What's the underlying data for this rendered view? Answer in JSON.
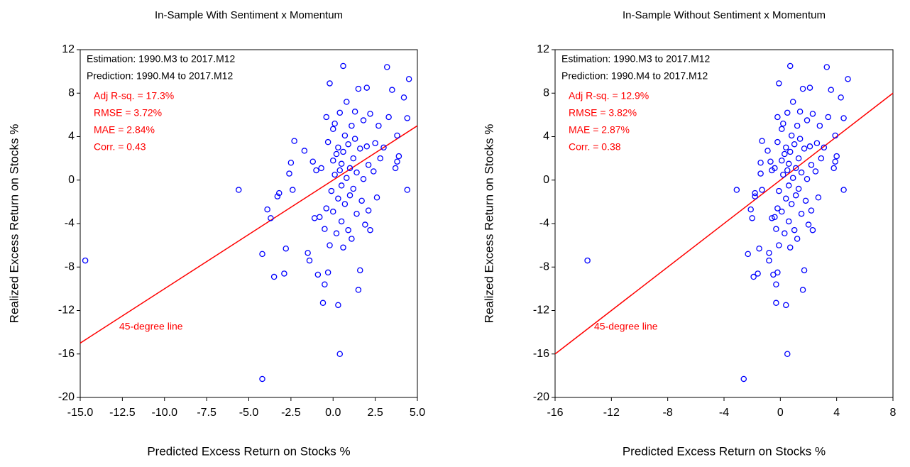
{
  "chart_data": [
    {
      "type": "scatter",
      "title": "In-Sample With Sentiment x Momentum",
      "x_label": "Predicted Excess Return on Stocks %",
      "y_label": "Realized Excess Return on Stocks %",
      "color": "#0000ff",
      "xlim": [
        -15,
        5
      ],
      "ylim": [
        -20,
        12
      ],
      "xticks": [
        {
          "value": -15,
          "label": "-15.0"
        },
        {
          "value": -12.5,
          "label": "-12.5"
        },
        {
          "value": -10,
          "label": "-10.0"
        },
        {
          "value": -7.5,
          "label": "-7.5"
        },
        {
          "value": -5,
          "label": "-5.0"
        },
        {
          "value": -2.5,
          "label": "-2.5"
        },
        {
          "value": 0,
          "label": "0.0"
        },
        {
          "value": 2.5,
          "label": "2.5"
        },
        {
          "value": 5,
          "label": "5.0"
        }
      ],
      "yticks": [
        -20,
        -16,
        -12,
        -8,
        -4,
        0,
        4,
        8,
        12
      ],
      "annotations": [
        {
          "text": "Estimation: 1990.M3 to 2017.M12",
          "color": "#000000"
        },
        {
          "text": "Prediction: 1990.M4 to 2017.M12",
          "color": "#000000"
        },
        {
          "text": "Adj R-sq. = 17.3%",
          "color": "#ff0000"
        },
        {
          "text": "RMSE = 3.72%",
          "color": "#ff0000"
        },
        {
          "text": "MAE = 2.84%",
          "color": "#ff0000"
        },
        {
          "text": "Corr. = 0.43",
          "color": "#ff0000"
        }
      ],
      "reference_line": {
        "label": "45-degree line",
        "color": "#ff0000",
        "x": [
          -15,
          5
        ],
        "y": [
          -15,
          5
        ]
      },
      "x": [
        -14.7,
        -5.6,
        -4.2,
        -4.2,
        -3.9,
        -3.7,
        -3.5,
        -3.3,
        -3.2,
        -2.9,
        -2.8,
        -2.6,
        -2.5,
        -2.4,
        -2.3,
        -1.7,
        -1.5,
        -1.4,
        -1.2,
        -1.1,
        -1.0,
        -0.9,
        -0.8,
        -0.7,
        -0.6,
        -0.5,
        -0.5,
        -0.4,
        -0.4,
        -0.3,
        -0.3,
        -0.2,
        -0.2,
        -0.1,
        0.0,
        0.0,
        0.0,
        0.1,
        0.1,
        0.2,
        0.2,
        0.3,
        0.3,
        0.3,
        0.4,
        0.4,
        0.4,
        0.5,
        0.5,
        0.5,
        0.6,
        0.6,
        0.6,
        0.7,
        0.7,
        0.8,
        0.8,
        0.9,
        0.9,
        1.0,
        1.0,
        1.1,
        1.1,
        1.2,
        1.2,
        1.3,
        1.3,
        1.4,
        1.4,
        1.5,
        1.5,
        1.6,
        1.6,
        1.7,
        1.8,
        1.8,
        1.9,
        2.0,
        2.0,
        2.1,
        2.1,
        2.2,
        2.2,
        2.4,
        2.5,
        2.6,
        2.7,
        2.8,
        3.0,
        3.2,
        3.3,
        3.5,
        3.7,
        3.8,
        3.8,
        3.9,
        4.2,
        4.4,
        4.4,
        4.5
      ],
      "y": [
        -7.4,
        -0.9,
        -18.3,
        -6.8,
        -2.7,
        -3.5,
        -8.9,
        -1.5,
        -1.2,
        -8.6,
        -6.3,
        0.6,
        1.6,
        -0.9,
        3.6,
        2.7,
        -6.7,
        -7.4,
        1.7,
        -3.5,
        0.9,
        -8.7,
        -3.4,
        1.1,
        -11.3,
        -9.6,
        -4.5,
        -2.6,
        5.8,
        -8.5,
        3.5,
        8.9,
        -6.0,
        -1.0,
        4.7,
        1.8,
        -2.9,
        0.5,
        5.2,
        -4.9,
        2.4,
        -11.5,
        -1.7,
        3.0,
        -16.0,
        0.9,
        6.2,
        -3.8,
        1.5,
        -0.5,
        10.5,
        -6.2,
        2.6,
        4.1,
        -2.2,
        0.2,
        7.2,
        -4.6,
        3.3,
        1.1,
        -1.4,
        5.0,
        -5.4,
        2.0,
        -0.8,
        6.3,
        3.8,
        -3.1,
        0.7,
        -10.1,
        8.4,
        -8.3,
        2.9,
        -1.9,
        5.5,
        0.1,
        -4.1,
        8.5,
        3.1,
        -2.8,
        1.4,
        -4.6,
        6.1,
        0.8,
        3.4,
        -1.6,
        5.0,
        2.0,
        3.0,
        10.4,
        5.8,
        8.3,
        1.1,
        1.7,
        4.1,
        2.2,
        7.6,
        -0.9,
        5.7,
        9.3
      ]
    },
    {
      "type": "scatter",
      "title": "In-Sample Without Sentiment x Momentum",
      "x_label": "Predicted Excess Return on Stocks %",
      "y_label": "Realized Excess Return on Stocks %",
      "color": "#0000ff",
      "xlim": [
        -16,
        8
      ],
      "ylim": [
        -20,
        12
      ],
      "xticks": [
        -16,
        -12,
        -8,
        -4,
        0,
        4,
        8
      ],
      "yticks": [
        -20,
        -16,
        -12,
        -8,
        -4,
        0,
        4,
        8,
        12
      ],
      "annotations": [
        {
          "text": "Estimation: 1990.M3 to 2017.M12",
          "color": "#000000"
        },
        {
          "text": "Prediction: 1990.M4 to 2017.M12",
          "color": "#000000"
        },
        {
          "text": "Adj R-sq. = 12.9%",
          "color": "#ff0000"
        },
        {
          "text": "RMSE = 3.82%",
          "color": "#ff0000"
        },
        {
          "text": "MAE = 2.87%",
          "color": "#ff0000"
        },
        {
          "text": "Corr. = 0.38",
          "color": "#ff0000"
        }
      ],
      "reference_line": {
        "label": "45-degree line",
        "color": "#ff0000",
        "x": [
          -16,
          8
        ],
        "y": [
          -16,
          8
        ]
      },
      "x": [
        -13.7,
        -3.1,
        -2.6,
        -2.3,
        -2.1,
        -2.0,
        -1.9,
        -1.8,
        -1.8,
        -1.6,
        -1.5,
        -1.4,
        -1.4,
        -1.3,
        -1.3,
        -0.9,
        -0.8,
        -0.8,
        -0.7,
        -0.6,
        -0.6,
        -0.5,
        -0.4,
        -0.4,
        -0.3,
        -0.3,
        -0.3,
        -0.2,
        -0.2,
        -0.2,
        -0.2,
        -0.1,
        -0.1,
        -0.1,
        0.1,
        0.1,
        0.1,
        0.2,
        0.2,
        0.3,
        0.3,
        0.4,
        0.4,
        0.4,
        0.5,
        0.5,
        0.5,
        0.6,
        0.6,
        0.6,
        0.7,
        0.7,
        0.7,
        0.8,
        0.8,
        0.9,
        0.9,
        1.0,
        1.0,
        1.1,
        1.1,
        1.2,
        1.2,
        1.3,
        1.3,
        1.4,
        1.4,
        1.5,
        1.5,
        1.6,
        1.6,
        1.7,
        1.7,
        1.8,
        1.9,
        1.9,
        2.0,
        2.1,
        2.1,
        2.2,
        2.2,
        2.3,
        2.3,
        2.5,
        2.6,
        2.7,
        2.8,
        2.9,
        3.1,
        3.3,
        3.4,
        3.6,
        3.8,
        3.9,
        3.9,
        4.0,
        4.3,
        4.5,
        4.5,
        4.8
      ],
      "y": [
        -7.4,
        -0.9,
        -18.3,
        -6.8,
        -2.7,
        -3.5,
        -8.9,
        -1.5,
        -1.2,
        -8.6,
        -6.3,
        0.6,
        1.6,
        -0.9,
        3.6,
        2.7,
        -6.7,
        -7.4,
        1.7,
        -3.5,
        0.9,
        -8.7,
        -3.4,
        1.1,
        -11.3,
        -9.6,
        -4.5,
        -2.6,
        5.8,
        -8.5,
        3.5,
        8.9,
        -6.0,
        -1.0,
        4.7,
        1.8,
        -2.9,
        0.5,
        5.2,
        -4.9,
        2.4,
        -11.5,
        -1.7,
        3.0,
        -16.0,
        0.9,
        6.2,
        -3.8,
        1.5,
        -0.5,
        10.5,
        -6.2,
        2.6,
        4.1,
        -2.2,
        0.2,
        7.2,
        -4.6,
        3.3,
        1.1,
        -1.4,
        5.0,
        -5.4,
        2.0,
        -0.8,
        6.3,
        3.8,
        -3.1,
        0.7,
        -10.1,
        8.4,
        -8.3,
        2.9,
        -1.9,
        5.5,
        0.1,
        -4.1,
        8.5,
        3.1,
        -2.8,
        1.4,
        -4.6,
        6.1,
        0.8,
        3.4,
        -1.6,
        5.0,
        2.0,
        3.0,
        10.4,
        5.8,
        8.3,
        1.1,
        1.7,
        4.1,
        2.2,
        7.6,
        -0.9,
        5.7,
        9.3
      ]
    }
  ]
}
